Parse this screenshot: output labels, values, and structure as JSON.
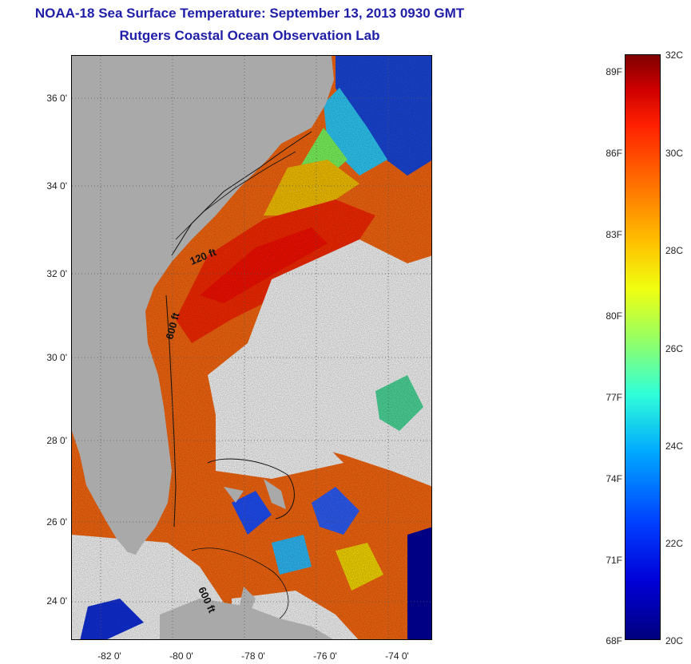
{
  "title": "NOAA-18 Sea Surface Temperature:  September 13, 2013 0930 GMT",
  "subtitle": "Rutgers Coastal Ocean Observation Lab",
  "map": {
    "lon_range": [
      -83,
      -73
    ],
    "lat_range": [
      23,
      37
    ],
    "lat_ticks": [
      "36 0'",
      "34 0'",
      "32 0'",
      "30 0'",
      "28 0'",
      "26 0'",
      "24 0'"
    ],
    "lon_ticks": [
      "-82 0'",
      "-80 0'",
      "-78 0'",
      "-76 0'",
      "-74 0'"
    ],
    "contour_labels": [
      "120 ft",
      "600 ft",
      "600 ft"
    ],
    "land_color": "#a9a9a9",
    "cloud_color": "#ffffff"
  },
  "colorbar": {
    "range_c": [
      20,
      32
    ],
    "celsius_labels": [
      "32C",
      "30C",
      "28C",
      "26C",
      "24C",
      "22C",
      "20C"
    ],
    "fahrenheit_labels": [
      "89F",
      "86F",
      "83F",
      "80F",
      "77F",
      "74F",
      "71F",
      "68F"
    ]
  }
}
